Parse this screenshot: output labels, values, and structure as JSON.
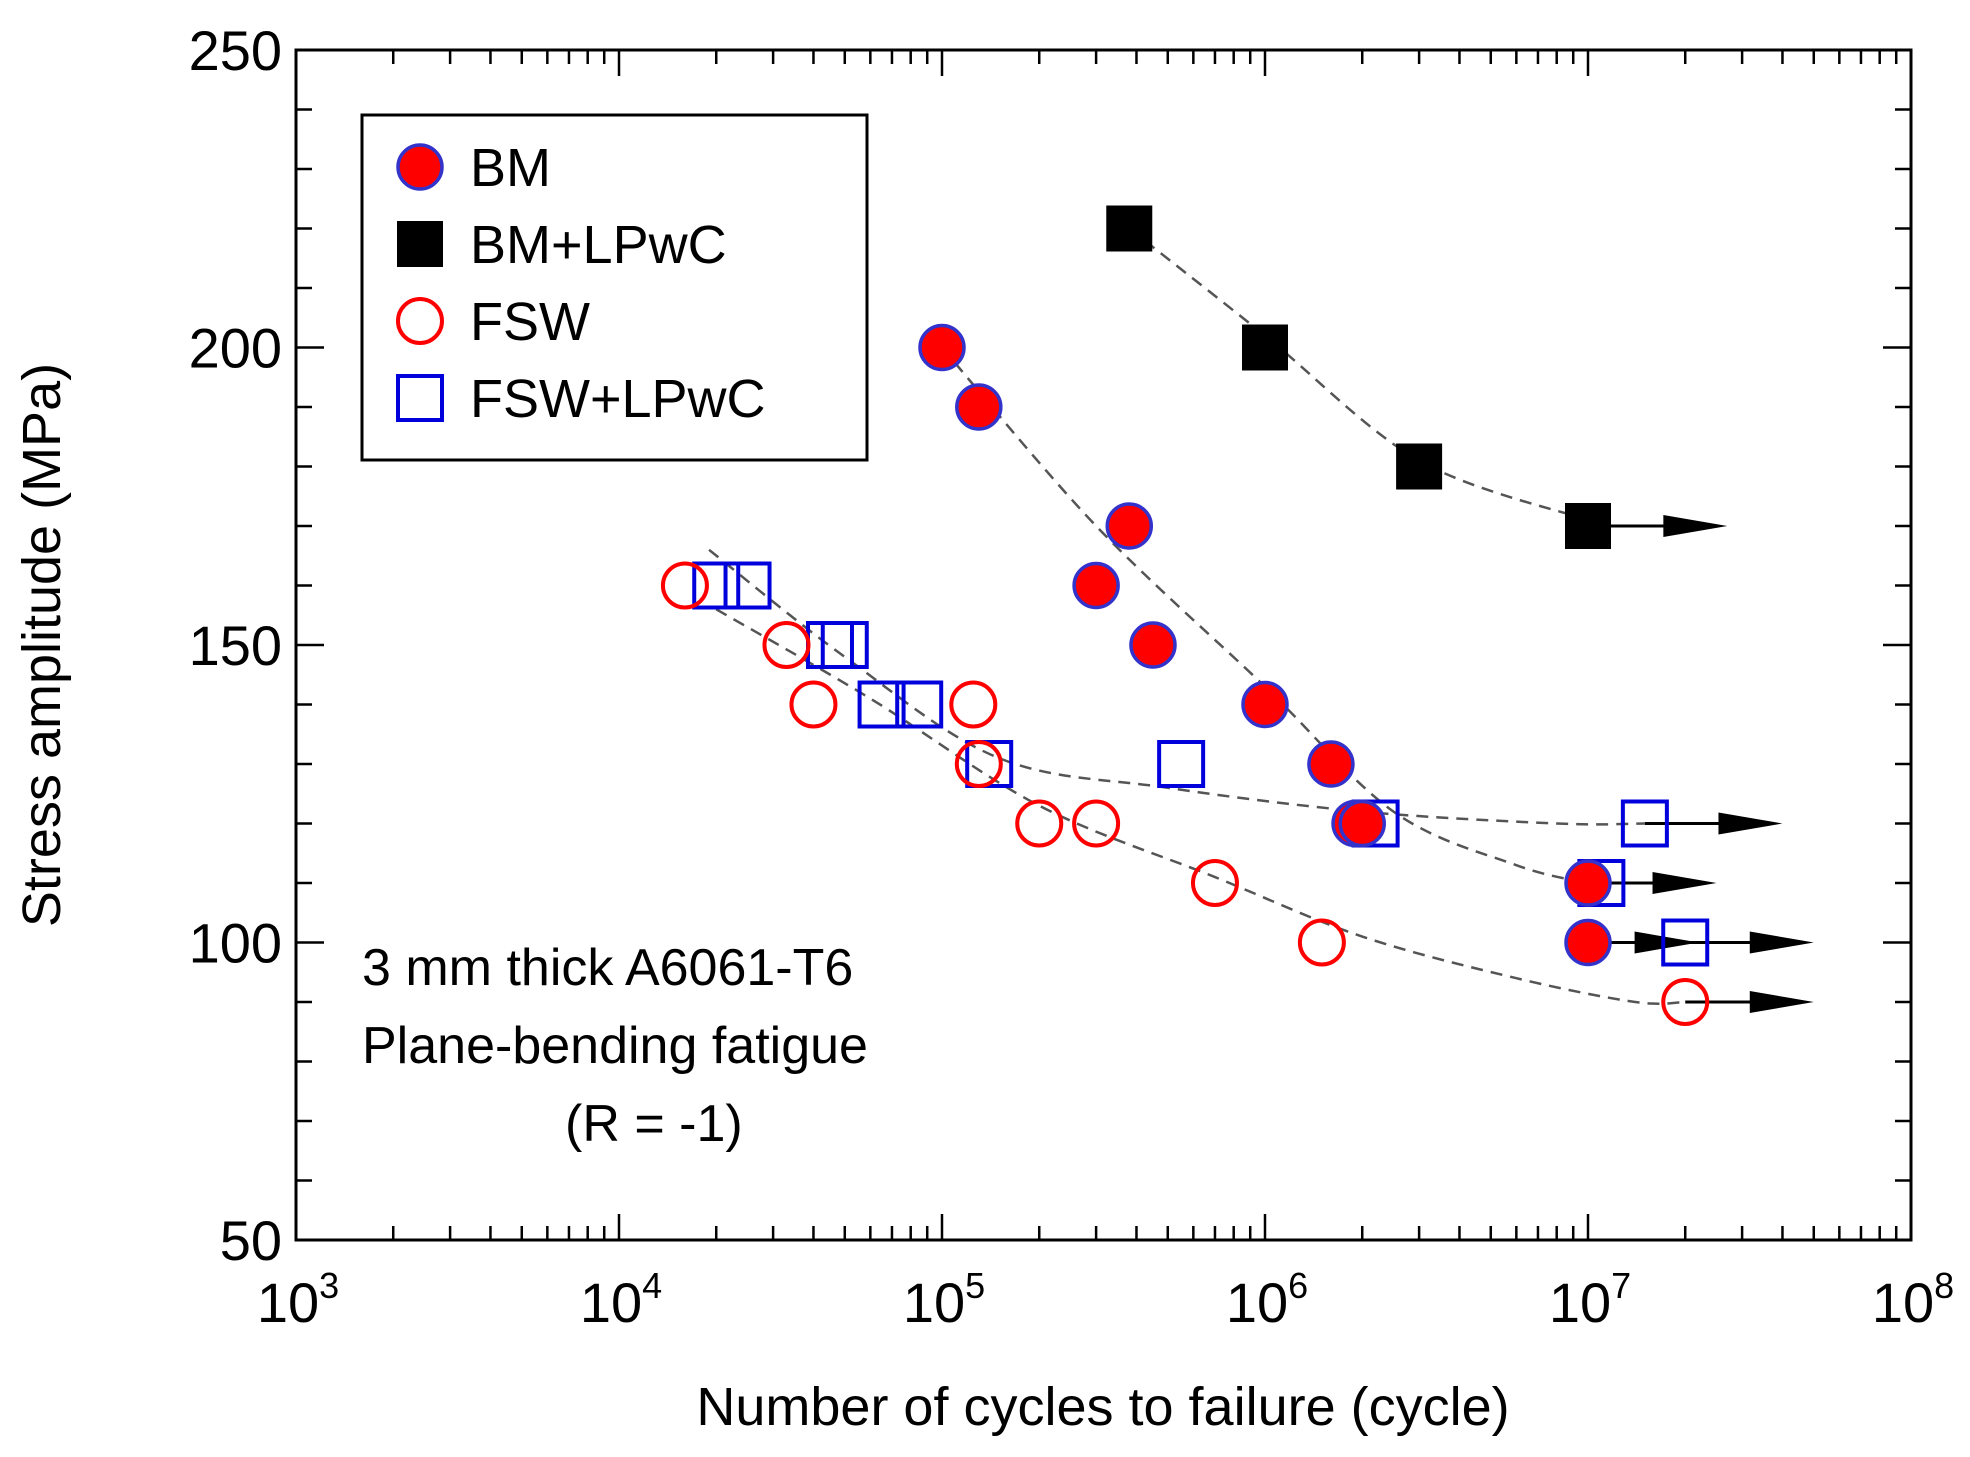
{
  "chart_data": {
    "type": "scatter",
    "title": "",
    "xlabel": "Number  of cycles to failure (cycle)",
    "ylabel": "Stress amplitude (MPa)",
    "x_scale": "log",
    "xlim": [
      1000,
      100000000
    ],
    "ylim": [
      50,
      250
    ],
    "x_ticks": [
      {
        "base": "10",
        "exp": "3",
        "value": 1000
      },
      {
        "base": "10",
        "exp": "4",
        "value": 10000
      },
      {
        "base": "10",
        "exp": "5",
        "value": 100000
      },
      {
        "base": "10",
        "exp": "6",
        "value": 1000000
      },
      {
        "base": "10",
        "exp": "7",
        "value": 10000000
      },
      {
        "base": "10",
        "exp": "8",
        "value": 100000000
      }
    ],
    "y_ticks": [
      "50",
      "100",
      "150",
      "200",
      "250"
    ],
    "y_tick_values": [
      50,
      100,
      150,
      200,
      250
    ],
    "y_minor_step": 10,
    "legend_position": "top-left",
    "annotation": [
      "3 mm  thick A6061-T6",
      "Plane-bending  fatigue",
      "(R = -1)"
    ],
    "series": [
      {
        "name": "BM",
        "marker": "filled-circle",
        "fill": "#ff0000",
        "stroke": "#3333cc",
        "points": [
          {
            "x": 100000,
            "y": 200
          },
          {
            "x": 130000,
            "y": 190
          },
          {
            "x": 380000,
            "y": 170
          },
          {
            "x": 300000,
            "y": 160
          },
          {
            "x": 450000,
            "y": 150
          },
          {
            "x": 1000000,
            "y": 140
          },
          {
            "x": 1600000,
            "y": 130
          },
          {
            "x": 1900000,
            "y": 120
          },
          {
            "x": 2000000,
            "y": 120
          },
          {
            "x": 10000000,
            "y": 110,
            "runout": true
          },
          {
            "x": 10000000,
            "y": 100,
            "runout": true
          }
        ],
        "trend": [
          [
            100000,
            200
          ],
          [
            300000,
            170
          ],
          [
            1000000,
            143
          ],
          [
            2500000,
            122
          ],
          [
            6000000,
            113
          ],
          [
            10000000,
            110
          ]
        ]
      },
      {
        "name": "BM+LPwC",
        "marker": "filled-square",
        "fill": "#000000",
        "stroke": "#000000",
        "points": [
          {
            "x": 380000,
            "y": 220
          },
          {
            "x": 1000000,
            "y": 200
          },
          {
            "x": 3000000,
            "y": 180
          },
          {
            "x": 10000000,
            "y": 170,
            "runout": true
          }
        ],
        "trend": [
          [
            380000,
            220
          ],
          [
            1000000,
            202
          ],
          [
            3000000,
            181
          ],
          [
            10000000,
            171
          ]
        ]
      },
      {
        "name": "FSW",
        "marker": "open-circle",
        "fill": "none",
        "stroke": "#ff0000",
        "points": [
          {
            "x": 16000,
            "y": 160
          },
          {
            "x": 33000,
            "y": 150
          },
          {
            "x": 40000,
            "y": 140
          },
          {
            "x": 125000,
            "y": 140
          },
          {
            "x": 130000,
            "y": 130
          },
          {
            "x": 200000,
            "y": 120
          },
          {
            "x": 300000,
            "y": 120
          },
          {
            "x": 700000,
            "y": 110
          },
          {
            "x": 1500000,
            "y": 100
          },
          {
            "x": 20000000,
            "y": 90,
            "runout": true
          }
        ],
        "trend": [
          [
            20000,
            156
          ],
          [
            60000,
            141
          ],
          [
            200000,
            123
          ],
          [
            700000,
            111
          ],
          [
            2000000,
            101
          ],
          [
            6000000,
            94
          ],
          [
            14000000,
            90
          ],
          [
            20000000,
            90
          ]
        ]
      },
      {
        "name": "FSW+LPwC",
        "marker": "open-square",
        "fill": "none",
        "stroke": "#0000dd",
        "points": [
          {
            "x": 20000,
            "y": 160
          },
          {
            "x": 25000,
            "y": 160
          },
          {
            "x": 45000,
            "y": 150
          },
          {
            "x": 50000,
            "y": 150
          },
          {
            "x": 65000,
            "y": 140
          },
          {
            "x": 85000,
            "y": 140
          },
          {
            "x": 140000,
            "y": 130
          },
          {
            "x": 550000,
            "y": 130
          },
          {
            "x": 2200000,
            "y": 120
          },
          {
            "x": 15000000,
            "y": 120,
            "runout": true
          },
          {
            "x": 11000000,
            "y": 110,
            "runout": true
          },
          {
            "x": 20000000,
            "y": 100,
            "runout": true
          }
        ],
        "trend": [
          [
            19000,
            166
          ],
          [
            50000,
            148
          ],
          [
            150000,
            131
          ],
          [
            500000,
            126
          ],
          [
            2000000,
            122
          ],
          [
            8000000,
            120
          ],
          [
            15000000,
            120
          ]
        ]
      }
    ],
    "runout_arrows": [
      {
        "series": "BM+LPwC",
        "x_from": 10000000,
        "x_to": 27000000,
        "y": 170
      },
      {
        "series": "FSW+LPwC",
        "x_from": 15000000,
        "x_to": 40000000,
        "y": 120
      },
      {
        "series": "BM",
        "x_from": 10000000,
        "x_to": 25000000,
        "y": 110
      },
      {
        "series": "BM",
        "x_from": 10000000,
        "x_to": 22000000,
        "y": 100
      },
      {
        "series": "FSW+LPwC",
        "x_from": 20000000,
        "x_to": 50000000,
        "y": 100
      },
      {
        "series": "FSW",
        "x_from": 20000000,
        "x_to": 50000000,
        "y": 90
      }
    ]
  }
}
